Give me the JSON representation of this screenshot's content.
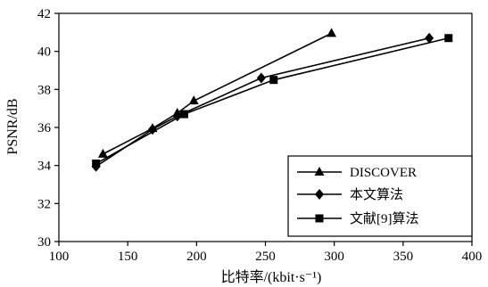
{
  "chart_data": {
    "type": "line",
    "title": "",
    "xlabel": "比特率/(kbit·s⁻¹)",
    "ylabel": "PSNR/dB",
    "xlim": [
      100,
      400
    ],
    "ylim": [
      30,
      42
    ],
    "xticks": [
      100,
      150,
      200,
      250,
      300,
      350,
      400
    ],
    "yticks": [
      30,
      32,
      34,
      36,
      38,
      40,
      42
    ],
    "grid": false,
    "legend_position": "bottom-right",
    "series": [
      {
        "name": "DISCOVER",
        "marker": "triangle",
        "points": [
          [
            132,
            34.6
          ],
          [
            168,
            35.95
          ],
          [
            186,
            36.75
          ],
          [
            198,
            37.4
          ],
          [
            298,
            40.95
          ]
        ]
      },
      {
        "name": "本文算法",
        "marker": "diamond",
        "points": [
          [
            127,
            33.95
          ],
          [
            168,
            35.9
          ],
          [
            186,
            36.6
          ],
          [
            247,
            38.6
          ],
          [
            369,
            40.7
          ]
        ]
      },
      {
        "name": "文献[9]算法",
        "marker": "square",
        "points": [
          [
            127,
            34.1
          ],
          [
            191,
            36.7
          ],
          [
            256,
            38.5
          ],
          [
            383,
            40.7
          ]
        ]
      }
    ]
  }
}
